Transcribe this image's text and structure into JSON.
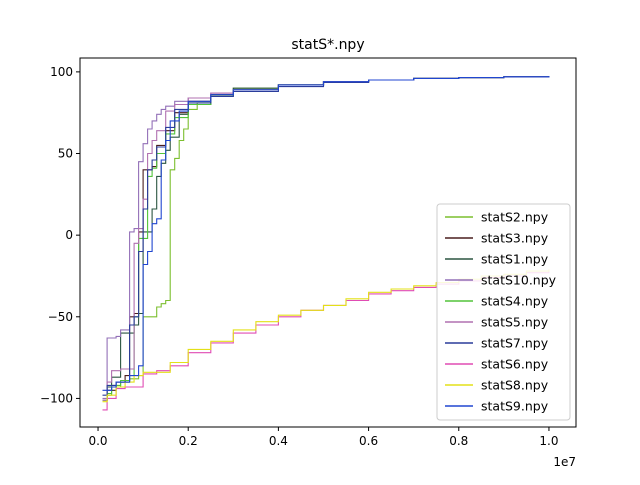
{
  "chart_data": {
    "type": "line",
    "title": "statS*.npy",
    "xlabel": "",
    "ylabel": "",
    "x_offset_label": "1e7",
    "xlim": [
      -0.04,
      1.06
    ],
    "ylim": [
      -117.5,
      108.5
    ],
    "x_scale_factor": 10000000,
    "x_ticks": [
      0.0,
      0.2,
      0.4,
      0.6,
      0.8,
      1.0
    ],
    "x_tick_labels": [
      "0.0",
      "0.2",
      "0.4",
      "0.6",
      "0.8",
      "1.0"
    ],
    "y_ticks": [
      -100,
      -50,
      0,
      50,
      100
    ],
    "y_tick_labels": [
      "−100",
      "−50",
      "0",
      "50",
      "100"
    ],
    "grid": false,
    "legend_position": "lower-right",
    "series": [
      {
        "name": "statS2.npy",
        "color": "#7cbf2f",
        "x": [
          0.01,
          0.02,
          0.03,
          0.05,
          0.07,
          0.09,
          0.1,
          0.12,
          0.13,
          0.14,
          0.15,
          0.16,
          0.17,
          0.18,
          0.19,
          0.2,
          0.22,
          0.25,
          0.3,
          0.4,
          0.5,
          0.6,
          0.7,
          0.8,
          0.9,
          1.0
        ],
        "y": [
          -101,
          -98,
          -93,
          -90,
          -88,
          -86,
          -50,
          -50,
          -44,
          -42,
          -40,
          40,
          47,
          58,
          65,
          77,
          81,
          86,
          90,
          92,
          94,
          95,
          96,
          96.5,
          97,
          97.5
        ]
      },
      {
        "name": "statS3.npy",
        "color": "#4a1f1f",
        "x": [
          0.01,
          0.02,
          0.04,
          0.06,
          0.07,
          0.08,
          0.09,
          0.1,
          0.12,
          0.13,
          0.15,
          0.17,
          0.2,
          0.25,
          0.3,
          0.4,
          0.5,
          0.6,
          0.7,
          0.8,
          0.9,
          1.0
        ],
        "y": [
          -101,
          -95,
          -90,
          -86,
          -50,
          -48,
          2,
          40,
          42,
          55,
          64,
          75,
          82,
          86,
          89,
          92,
          94,
          95,
          96,
          96.5,
          97,
          97.5
        ]
      },
      {
        "name": "statS1.npy",
        "color": "#2b5540",
        "x": [
          0.01,
          0.02,
          0.03,
          0.05,
          0.06,
          0.07,
          0.08,
          0.09,
          0.1,
          0.12,
          0.13,
          0.14,
          0.15,
          0.16,
          0.18,
          0.2,
          0.25,
          0.3,
          0.4,
          0.5,
          0.6,
          0.7,
          0.8,
          0.9,
          1.0
        ],
        "y": [
          -101,
          -93,
          -87,
          -60,
          -60,
          -60,
          -55,
          -48,
          2,
          16,
          36,
          44,
          52,
          60,
          74,
          80,
          86,
          90,
          92,
          94,
          95,
          96,
          96.5,
          97,
          97.5
        ]
      },
      {
        "name": "statS10.npy",
        "color": "#9370b8",
        "x": [
          0.01,
          0.02,
          0.03,
          0.04,
          0.05,
          0.07,
          0.08,
          0.09,
          0.1,
          0.11,
          0.12,
          0.13,
          0.14,
          0.15,
          0.17,
          0.2,
          0.25,
          0.3,
          0.4,
          0.5,
          0.6,
          0.7,
          0.8,
          0.9,
          1.0
        ],
        "y": [
          -100,
          -63,
          -63,
          -62,
          -58,
          2,
          4,
          45,
          56,
          65,
          70,
          74,
          77,
          79,
          82,
          84,
          87,
          89,
          92,
          94,
          95,
          96,
          96.5,
          97,
          97.5
        ]
      },
      {
        "name": "statS4.npy",
        "color": "#52c43a",
        "x": [
          0.01,
          0.02,
          0.03,
          0.05,
          0.07,
          0.08,
          0.09,
          0.1,
          0.11,
          0.12,
          0.13,
          0.15,
          0.17,
          0.2,
          0.25,
          0.3,
          0.4,
          0.5,
          0.6,
          0.7,
          0.8,
          0.9,
          1.0
        ],
        "y": [
          -101,
          -97,
          -92,
          -89,
          -86,
          -50,
          -2,
          -2,
          36,
          41,
          50,
          62,
          72,
          80,
          85,
          89,
          92,
          94,
          95,
          96,
          96.5,
          97,
          97.5
        ]
      },
      {
        "name": "statS5.npy",
        "color": "#b070b0",
        "x": [
          0.01,
          0.02,
          0.03,
          0.05,
          0.06,
          0.07,
          0.08,
          0.09,
          0.1,
          0.11,
          0.12,
          0.13,
          0.15,
          0.17,
          0.2,
          0.25,
          0.3,
          0.4,
          0.5,
          0.6,
          0.7,
          0.8,
          0.9,
          1.0
        ],
        "y": [
          -101,
          -90,
          -83,
          -82,
          -82,
          -82,
          -5,
          4,
          22,
          50,
          58,
          64,
          76,
          80,
          84,
          87,
          89,
          92,
          94,
          95,
          96,
          96.5,
          97,
          97.5
        ]
      },
      {
        "name": "statS7.npy",
        "color": "#2a3c9a",
        "x": [
          0.01,
          0.02,
          0.04,
          0.06,
          0.07,
          0.08,
          0.09,
          0.1,
          0.11,
          0.12,
          0.13,
          0.15,
          0.17,
          0.2,
          0.25,
          0.3,
          0.4,
          0.5,
          0.6,
          0.7,
          0.8,
          0.9,
          1.0
        ],
        "y": [
          -98,
          -92,
          -90,
          -90,
          -55,
          -50,
          -10,
          16,
          40,
          46,
          54,
          66,
          77,
          81,
          85,
          88,
          91,
          93.5,
          95,
          96,
          96.5,
          97,
          97.5
        ]
      },
      {
        "name": "statS6.npy",
        "color": "#e04cb4",
        "x": [
          0.01,
          0.02,
          0.04,
          0.06,
          0.08,
          0.1,
          0.13,
          0.16,
          0.2,
          0.25,
          0.3,
          0.35,
          0.4,
          0.45,
          0.5,
          0.55,
          0.6,
          0.65,
          0.7,
          0.75,
          0.8,
          0.85,
          0.9,
          0.95,
          1.0
        ],
        "y": [
          -107,
          -100,
          -94,
          -93,
          -93,
          -85,
          -83,
          -80,
          -72,
          -66,
          -60,
          -55,
          -50,
          -46,
          -43,
          -40,
          -36,
          -34,
          -32,
          -30,
          -28,
          -26,
          -25,
          -23,
          -22
        ]
      },
      {
        "name": "statS8.npy",
        "color": "#e3e018",
        "x": [
          0.01,
          0.02,
          0.04,
          0.06,
          0.08,
          0.1,
          0.13,
          0.16,
          0.2,
          0.25,
          0.3,
          0.35,
          0.4,
          0.45,
          0.5,
          0.55,
          0.6,
          0.65,
          0.7,
          0.75,
          0.8,
          0.85,
          0.9,
          0.95,
          1.0
        ],
        "y": [
          -102,
          -98,
          -93,
          -90,
          -86,
          -84,
          -84,
          -78,
          -70,
          -65,
          -58,
          -53,
          -49,
          -46,
          -43,
          -39,
          -35,
          -33,
          -31,
          -29,
          -27,
          -25,
          -24,
          -22,
          -21
        ]
      },
      {
        "name": "statS9.npy",
        "color": "#2046d0",
        "x": [
          0.01,
          0.02,
          0.03,
          0.04,
          0.05,
          0.07,
          0.08,
          0.09,
          0.1,
          0.11,
          0.12,
          0.13,
          0.14,
          0.15,
          0.16,
          0.18,
          0.2,
          0.25,
          0.3,
          0.4,
          0.5,
          0.6,
          0.7,
          0.8,
          0.9,
          1.0
        ],
        "y": [
          -95,
          -95,
          -93,
          -90,
          -90,
          -86,
          -86,
          -80,
          -18,
          -10,
          7,
          10,
          46,
          58,
          70,
          76,
          82,
          86,
          89,
          92,
          94,
          95,
          96,
          96.5,
          97,
          97.5
        ]
      }
    ]
  }
}
